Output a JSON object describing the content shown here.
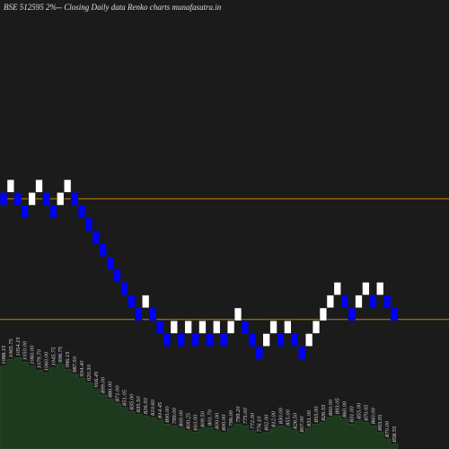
{
  "chart_data": {
    "type": "renko",
    "title": "BSE 512595 2%-- Closing Daily data Renko charts munafasutra.in",
    "levels": [
      19,
      20,
      19,
      18,
      19,
      20,
      19,
      18,
      19,
      20,
      19,
      18,
      17,
      16,
      15,
      14,
      13,
      12,
      11,
      10,
      11,
      10,
      9,
      8,
      9,
      8,
      9,
      8,
      9,
      8,
      9,
      8,
      9,
      10,
      9,
      8,
      7,
      8,
      9,
      8,
      9,
      8,
      7,
      8,
      9,
      10,
      11,
      12,
      11,
      10,
      11,
      12,
      11,
      12,
      11,
      10
    ],
    "directions": [
      "down",
      "up",
      "down",
      "down",
      "up",
      "up",
      "down",
      "down",
      "up",
      "up",
      "down",
      "down",
      "down",
      "down",
      "down",
      "down",
      "down",
      "down",
      "down",
      "down",
      "up",
      "down",
      "down",
      "down",
      "up",
      "down",
      "up",
      "down",
      "up",
      "down",
      "up",
      "down",
      "up",
      "up",
      "down",
      "down",
      "down",
      "up",
      "up",
      "down",
      "up",
      "down",
      "down",
      "up",
      "up",
      "up",
      "up",
      "up",
      "down",
      "down",
      "up",
      "up",
      "down",
      "up",
      "down",
      "down"
    ],
    "up_color": "#ffffff",
    "down_color": "#0000ff",
    "ylim": [
      -1,
      34
    ],
    "hlines": [
      18.5,
      9.1
    ],
    "hline_color": "#c87f0a",
    "volume": {
      "values": [
        100,
        108,
        110,
        105,
        100,
        95,
        92,
        98,
        102,
        96,
        90,
        85,
        80,
        72,
        65,
        60,
        55,
        50,
        45,
        42,
        40,
        38,
        35,
        30,
        28,
        25,
        22,
        20,
        24,
        26,
        22,
        20,
        25,
        30,
        28,
        22,
        18,
        20,
        24,
        28,
        26,
        22,
        18,
        25,
        30,
        32,
        38,
        40,
        36,
        30,
        34,
        32,
        28,
        20,
        12,
        6
      ],
      "labels": [
        "1088.15",
        "1065.75",
        "1054.15",
        "1050.00",
        "1060.00",
        "1079.70",
        "1060.00",
        "1045.75",
        "998.75",
        "996.15",
        "987.50",
        "934.40",
        "920.30",
        "916.45",
        "899.00",
        "880.00",
        "871.00",
        "851.05",
        "835.00",
        "835.50",
        "826.50",
        "810.60",
        "814.45",
        "800.00",
        "799.00",
        "800.00",
        "800.25",
        "810.00",
        "809.50",
        "801.70",
        "800.00",
        "800.00",
        "796.00",
        "799.20",
        "775.00",
        "772.00",
        "776.10",
        "802.00",
        "812.00",
        "830.00",
        "855.00",
        "826.50",
        "807.00",
        "831.00",
        "855.00",
        "826.55",
        "860.00",
        "893.05",
        "860.00",
        "831.00",
        "855.00",
        "870.05",
        "860.00",
        "893.05",
        "870.00",
        "858.55"
      ],
      "ylim": [
        0,
        130
      ],
      "color": "#1e3a1e"
    }
  }
}
